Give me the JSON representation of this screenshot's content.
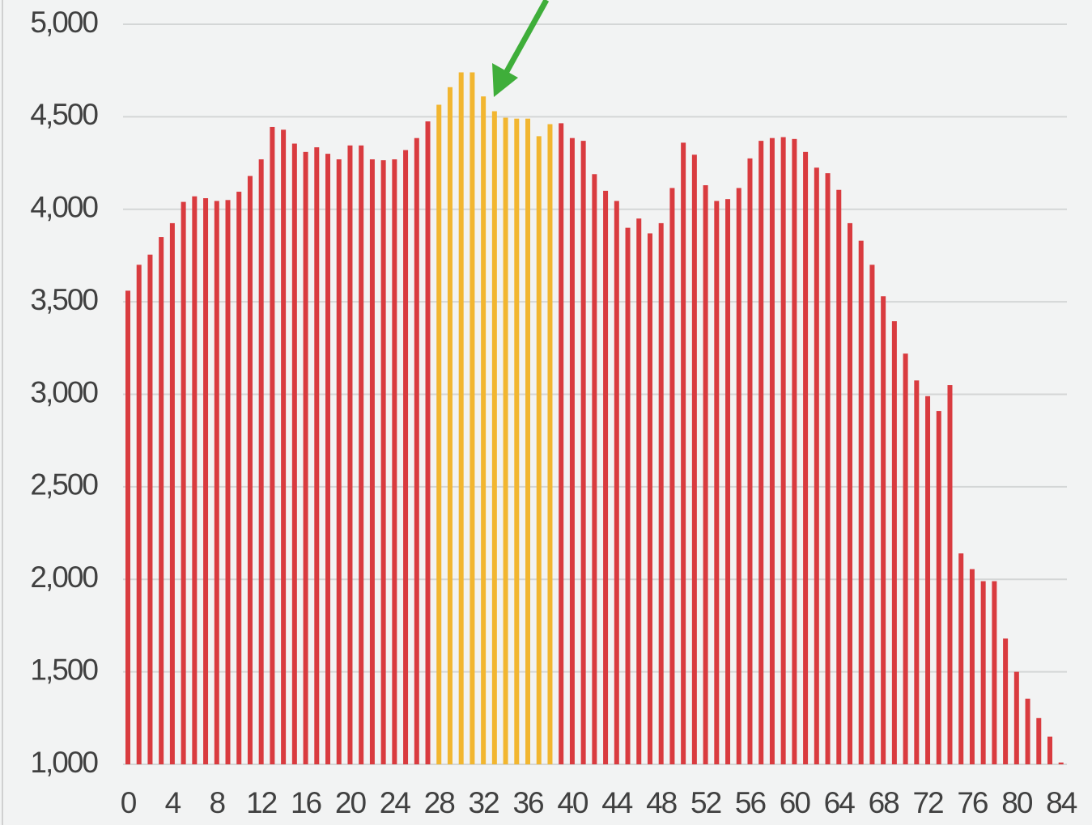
{
  "chart_data": {
    "type": "bar",
    "categories": [
      "0",
      null,
      null,
      null,
      "4",
      null,
      null,
      null,
      "8",
      null,
      null,
      null,
      "12",
      null,
      null,
      null,
      "16",
      null,
      null,
      null,
      "20",
      null,
      null,
      null,
      "24",
      null,
      null,
      null,
      "28",
      null,
      null,
      null,
      "32",
      null,
      null,
      null,
      "36",
      null,
      null,
      null,
      "40",
      null,
      null,
      null,
      "44",
      null,
      null,
      null,
      "48",
      null,
      null,
      null,
      "52",
      null,
      null,
      null,
      "56",
      null,
      null,
      null,
      "60",
      null,
      null,
      null,
      "64",
      null,
      null,
      null,
      "68",
      null,
      null,
      null,
      "72",
      null,
      null,
      null,
      "76",
      null,
      null,
      null,
      "80",
      null,
      null,
      null,
      "84"
    ],
    "values": [
      3560,
      3700,
      3755,
      3850,
      3925,
      4040,
      4070,
      4060,
      4045,
      4050,
      4095,
      4180,
      4270,
      4445,
      4430,
      4355,
      4310,
      4335,
      4300,
      4270,
      4345,
      4345,
      4270,
      4265,
      4270,
      4320,
      4385,
      4475,
      4565,
      4660,
      4740,
      4740,
      4610,
      4530,
      4495,
      4490,
      4490,
      4395,
      4460,
      4465,
      4385,
      4370,
      4190,
      4100,
      4045,
      3900,
      3950,
      3870,
      3925,
      4115,
      4360,
      4295,
      4130,
      4045,
      4055,
      4115,
      4275,
      4370,
      4385,
      4390,
      4380,
      4310,
      4225,
      4195,
      4105,
      3925,
      3830,
      3700,
      3530,
      3395,
      3220,
      3075,
      2990,
      2910,
      3050,
      2140,
      2055,
      1990,
      1990,
      1680,
      1500,
      1355,
      1250,
      1150,
      1010
    ],
    "colors": [
      "#d93b3f",
      "#d93b3f",
      "#d93b3f",
      "#d93b3f",
      "#d93b3f",
      "#d93b3f",
      "#d93b3f",
      "#d93b3f",
      "#d93b3f",
      "#d93b3f",
      "#d93b3f",
      "#d93b3f",
      "#d93b3f",
      "#d93b3f",
      "#d93b3f",
      "#d93b3f",
      "#d93b3f",
      "#d93b3f",
      "#d93b3f",
      "#d93b3f",
      "#d93b3f",
      "#d93b3f",
      "#d93b3f",
      "#d93b3f",
      "#d93b3f",
      "#d93b3f",
      "#d93b3f",
      "#d93b3f",
      "#f2b630",
      "#f2b630",
      "#f2b630",
      "#f2b630",
      "#f2b630",
      "#f2b630",
      "#f2b630",
      "#f2b630",
      "#f2b630",
      "#f2b630",
      "#f2b630",
      "#d93b3f",
      "#d93b3f",
      "#d93b3f",
      "#d93b3f",
      "#d93b3f",
      "#d93b3f",
      "#d93b3f",
      "#d93b3f",
      "#d93b3f",
      "#d93b3f",
      "#d93b3f",
      "#d93b3f",
      "#d93b3f",
      "#d93b3f",
      "#d93b3f",
      "#d93b3f",
      "#d93b3f",
      "#d93b3f",
      "#d93b3f",
      "#d93b3f",
      "#d93b3f",
      "#d93b3f",
      "#d93b3f",
      "#d93b3f",
      "#d93b3f",
      "#d93b3f",
      "#d93b3f",
      "#d93b3f",
      "#d93b3f",
      "#d93b3f",
      "#d93b3f",
      "#d93b3f",
      "#d93b3f",
      "#d93b3f",
      "#d93b3f",
      "#d93b3f",
      "#d93b3f",
      "#d93b3f",
      "#d93b3f",
      "#d93b3f",
      "#d93b3f",
      "#d93b3f",
      "#d93b3f",
      "#d93b3f",
      "#d93b3f",
      "#d93b3f"
    ],
    "ylim": [
      1000,
      5000
    ],
    "yticks": [
      {
        "value": 1000,
        "label": "1,000"
      },
      {
        "value": 1500,
        "label": "1,500"
      },
      {
        "value": 2000,
        "label": "2,000"
      },
      {
        "value": 2500,
        "label": "2,500"
      },
      {
        "value": 3000,
        "label": "3,000"
      },
      {
        "value": 3500,
        "label": "3,500"
      },
      {
        "value": 4000,
        "label": "4,000"
      },
      {
        "value": 4500,
        "label": "4,500"
      },
      {
        "value": 5000,
        "label": "5,000"
      }
    ],
    "grid": true
  }
}
